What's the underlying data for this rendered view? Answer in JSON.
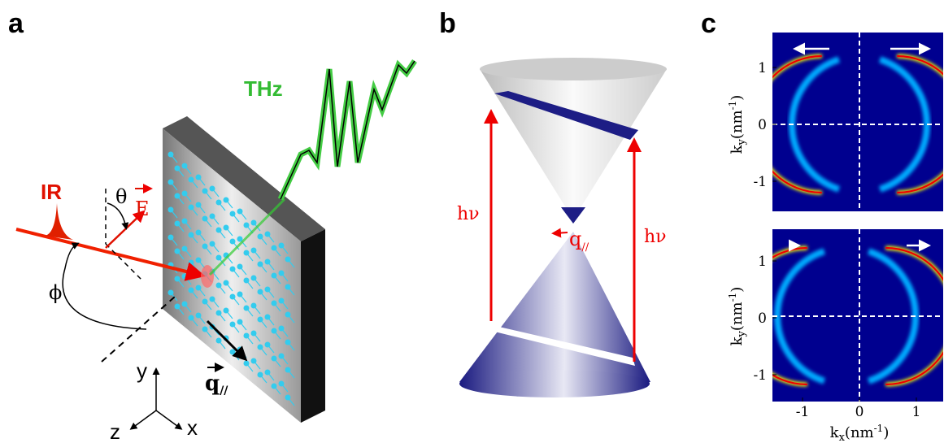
{
  "panel_a": {
    "label": "a",
    "ir": "IR",
    "thz": "THz",
    "theta": "θ",
    "field": "E",
    "phi": "ϕ",
    "axis_y": "y",
    "axis_z": "z",
    "axis_x": "x",
    "wavevector": "q",
    "wavevector_sub": "//"
  },
  "panel_b": {
    "label": "b",
    "photon_left": "hν",
    "photon_right": "hν",
    "wavevector": "q",
    "wavevector_sub": "//"
  },
  "panel_c": {
    "label": "c",
    "plots": [
      {
        "y_label": {
          "main": "k",
          "sub": "y",
          "unit": "(nm",
          "exp": "-1",
          "close": ")"
        },
        "y_ticks": [
          "1",
          "0",
          "-1"
        ]
      },
      {
        "y_label": {
          "main": "k",
          "sub": "y",
          "unit": "(nm",
          "exp": "-1",
          "close": ")"
        },
        "y_ticks": [
          "1",
          "0",
          "-1"
        ],
        "x_label": {
          "main": "k",
          "sub": "x",
          "unit": "(nm",
          "exp": "-1",
          "close": ")"
        },
        "x_ticks": [
          "-1",
          "0",
          "1"
        ]
      }
    ]
  }
}
